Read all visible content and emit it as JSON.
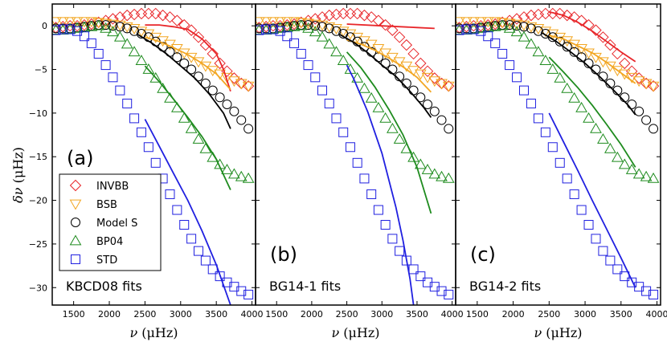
{
  "chart_data": {
    "type": "scatter",
    "y_label": "δν (μHz)",
    "x_label": "ν (μHz)",
    "x_label_parts": {
      "symbol": "ν",
      "unit": "(μHz)"
    },
    "y_label_parts": {
      "symbol": "δν",
      "unit": "(μHz)"
    },
    "xlim": [
      1200,
      4050
    ],
    "ylim": [
      -32,
      2.5
    ],
    "x_ticks": [
      1500,
      2000,
      2500,
      3000,
      3500,
      4000
    ],
    "y_ticks": [
      0,
      -5,
      -10,
      -15,
      -20,
      -25,
      -30
    ],
    "legend": [
      {
        "name": "INVBB",
        "marker": "diamond",
        "color": "#e8262a"
      },
      {
        "name": "BSB",
        "marker": "triangle-down",
        "color": "#f2a622"
      },
      {
        "name": "Model S",
        "marker": "circle",
        "color": "#000000"
      },
      {
        "name": "BP04",
        "marker": "triangle-up",
        "color": "#1e8b1e"
      },
      {
        "name": "STD",
        "marker": "square",
        "color": "#2020e0"
      }
    ],
    "series": [
      {
        "name": "INVBB",
        "x": [
          1250,
          1350,
          1450,
          1550,
          1650,
          1750,
          1850,
          1950,
          2050,
          2150,
          2250,
          2350,
          2450,
          2550,
          2650,
          2750,
          2850,
          2950,
          3050,
          3150,
          3250,
          3350,
          3450,
          3550,
          3650,
          3750,
          3850,
          3950
        ],
        "y": [
          -0.2,
          -0.1,
          0,
          0,
          0.1,
          0.2,
          0.4,
          0.6,
          0.8,
          1.0,
          1.2,
          1.3,
          1.4,
          1.4,
          1.4,
          1.2,
          1.0,
          0.6,
          0.1,
          -0.5,
          -1.3,
          -2.2,
          -3.2,
          -4.3,
          -5.2,
          -6.0,
          -6.6,
          -6.9
        ]
      },
      {
        "name": "BSB",
        "x": [
          1250,
          1350,
          1450,
          1550,
          1650,
          1750,
          1850,
          1950,
          2050,
          2150,
          2250,
          2350,
          2450,
          2550,
          2650,
          2750,
          2850,
          2950,
          3050,
          3150,
          3250,
          3350,
          3450,
          3550,
          3650,
          3750,
          3850,
          3950
        ],
        "y": [
          0.5,
          0.5,
          0.5,
          0.5,
          0.5,
          0.5,
          0.4,
          0.3,
          0.2,
          0.1,
          -0.1,
          -0.3,
          -0.6,
          -0.9,
          -1.3,
          -1.7,
          -2.1,
          -2.6,
          -3.1,
          -3.6,
          -4.1,
          -4.6,
          -5.1,
          -5.5,
          -5.9,
          -6.3,
          -6.6,
          -6.9
        ]
      },
      {
        "name": "Model S",
        "x": [
          1250,
          1350,
          1450,
          1550,
          1650,
          1750,
          1850,
          1950,
          2050,
          2150,
          2250,
          2350,
          2450,
          2550,
          2650,
          2750,
          2850,
          2950,
          3050,
          3150,
          3250,
          3350,
          3450,
          3550,
          3650,
          3750,
          3850,
          3950
        ],
        "y": [
          -0.3,
          -0.3,
          -0.3,
          -0.2,
          -0.1,
          0,
          0.1,
          0.1,
          0,
          -0.1,
          -0.3,
          -0.6,
          -0.9,
          -1.3,
          -1.8,
          -2.4,
          -3.0,
          -3.6,
          -4.3,
          -5.0,
          -5.8,
          -6.6,
          -7.4,
          -8.2,
          -9.0,
          -9.8,
          -10.8,
          -11.8
        ]
      },
      {
        "name": "BP04",
        "x": [
          1250,
          1350,
          1450,
          1550,
          1650,
          1750,
          1850,
          1950,
          2050,
          2150,
          2250,
          2350,
          2450,
          2550,
          2650,
          2750,
          2850,
          2950,
          3050,
          3150,
          3250,
          3350,
          3450,
          3550,
          3650,
          3750,
          3850,
          3950
        ],
        "y": [
          -0.5,
          -0.5,
          -0.4,
          -0.3,
          -0.2,
          -0.1,
          0,
          -0.3,
          -0.7,
          -1.3,
          -2.1,
          -3.0,
          -4.0,
          -5.0,
          -6.0,
          -7.2,
          -8.3,
          -9.4,
          -10.6,
          -11.8,
          -13.0,
          -14.1,
          -15.1,
          -15.9,
          -16.5,
          -17.0,
          -17.3,
          -17.5
        ]
      },
      {
        "name": "STD",
        "x": [
          1250,
          1350,
          1450,
          1550,
          1650,
          1750,
          1850,
          1950,
          2050,
          2150,
          2250,
          2350,
          2450,
          2550,
          2650,
          2750,
          2850,
          2950,
          3050,
          3150,
          3250,
          3350,
          3450,
          3550,
          3650,
          3750,
          3850,
          3950
        ],
        "y": [
          -0.5,
          -0.4,
          -0.4,
          -0.6,
          -1.2,
          -2.0,
          -3.2,
          -4.5,
          -5.9,
          -7.4,
          -8.9,
          -10.6,
          -12.2,
          -13.9,
          -15.7,
          -17.5,
          -19.3,
          -21.1,
          -22.8,
          -24.4,
          -25.8,
          -26.9,
          -27.9,
          -28.7,
          -29.4,
          -29.9,
          -30.4,
          -30.8
        ]
      }
    ],
    "panels": [
      {
        "tag": "(a)",
        "fit_label": "KBCD08 fits",
        "show_legend": true,
        "fits": [
          {
            "series": "INVBB",
            "x": [
              2500,
              2700,
              2900,
              3100,
              3300,
              3500,
              3600,
              3700
            ],
            "y": [
              0.1,
              0.1,
              -0.1,
              -0.4,
              -1.5,
              -3.2,
              -5.0,
              -7.5
            ]
          },
          {
            "series": "BSB",
            "x": [
              2500,
              2700,
              2900,
              3100,
              3300,
              3500,
              3700
            ],
            "y": [
              -1.3,
              -1.8,
              -2.5,
              -3.3,
              -4.3,
              -5.5,
              -7.3
            ]
          },
          {
            "series": "Model S",
            "x": [
              2400,
              2600,
              2800,
              3000,
              3200,
              3400,
              3600,
              3700
            ],
            "y": [
              -1.0,
              -2.0,
              -3.2,
              -4.6,
              -6.0,
              -7.8,
              -10.0,
              -11.8
            ]
          },
          {
            "series": "BP04",
            "x": [
              2500,
              2700,
              2900,
              3100,
              3300,
              3500,
              3700
            ],
            "y": [
              -4.6,
              -6.4,
              -8.4,
              -10.5,
              -12.7,
              -15.3,
              -18.8
            ]
          },
          {
            "series": "STD",
            "x": [
              2500,
              2700,
              2900,
              3100,
              3300,
              3500,
              3700
            ],
            "y": [
              -10.7,
              -13.8,
              -16.9,
              -20.0,
              -23.5,
              -27.4,
              -32.0
            ]
          }
        ]
      },
      {
        "tag": "(b)",
        "fit_label": "BG14-1 fits",
        "show_legend": false,
        "fits": [
          {
            "series": "INVBB",
            "x": [
              2500,
              3000,
              3500,
              3750
            ],
            "y": [
              0.2,
              0.0,
              -0.2,
              -0.3
            ]
          },
          {
            "series": "BSB",
            "x": [
              2500,
              2700,
              2900,
              3100,
              3300,
              3500,
              3700
            ],
            "y": [
              -1.6,
              -2.1,
              -2.8,
              -3.7,
              -4.7,
              -5.9,
              -7.6
            ]
          },
          {
            "series": "Model S",
            "x": [
              2400,
              2600,
              2800,
              3000,
              3200,
              3400,
              3600,
              3700
            ],
            "y": [
              -1.0,
              -1.9,
              -3.1,
              -4.5,
              -5.8,
              -7.5,
              -9.4,
              -10.5
            ]
          },
          {
            "series": "BP04",
            "x": [
              2500,
              2700,
              2900,
              3100,
              3300,
              3500,
              3700
            ],
            "y": [
              -3.0,
              -4.8,
              -7.0,
              -9.6,
              -12.5,
              -16.2,
              -21.5
            ]
          },
          {
            "series": "STD",
            "x": [
              2500,
              2600,
              2800,
              3000,
              3200,
              3300,
              3400,
              3450
            ],
            "y": [
              -4.5,
              -6.1,
              -9.9,
              -14.6,
              -20.8,
              -24.6,
              -29.0,
              -32.0
            ]
          }
        ]
      },
      {
        "tag": "(c)",
        "fit_label": "BG14-2 fits",
        "show_legend": false,
        "fits": [
          {
            "series": "INVBB",
            "x": [
              2500,
              2700,
              2900,
              3100,
              3300,
              3500,
              3700
            ],
            "y": [
              1.6,
              1.2,
              0.4,
              -0.6,
              -1.8,
              -3.0,
              -4.1
            ]
          },
          {
            "series": "BSB",
            "x": [
              2500,
              2700,
              2900,
              3100,
              3300,
              3500,
              3700
            ],
            "y": [
              -1.1,
              -1.5,
              -2.3,
              -3.1,
              -4.2,
              -5.4,
              -6.6
            ]
          },
          {
            "series": "Model S",
            "x": [
              2400,
              2600,
              2800,
              3000,
              3200,
              3400,
              3600,
              3700
            ],
            "y": [
              -0.8,
              -1.8,
              -3.0,
              -4.3,
              -5.8,
              -7.4,
              -9.1,
              -10.2
            ]
          },
          {
            "series": "BP04",
            "x": [
              2500,
              2700,
              2900,
              3100,
              3300,
              3500,
              3700
            ],
            "y": [
              -3.6,
              -5.3,
              -7.1,
              -9.1,
              -11.3,
              -13.6,
              -16.2
            ]
          },
          {
            "series": "STD",
            "x": [
              2500,
              2700,
              2900,
              3100,
              3300,
              3500,
              3700
            ],
            "y": [
              -10.0,
              -13.3,
              -16.6,
              -20.0,
              -23.3,
              -26.6,
              -30.0
            ]
          }
        ]
      }
    ]
  }
}
